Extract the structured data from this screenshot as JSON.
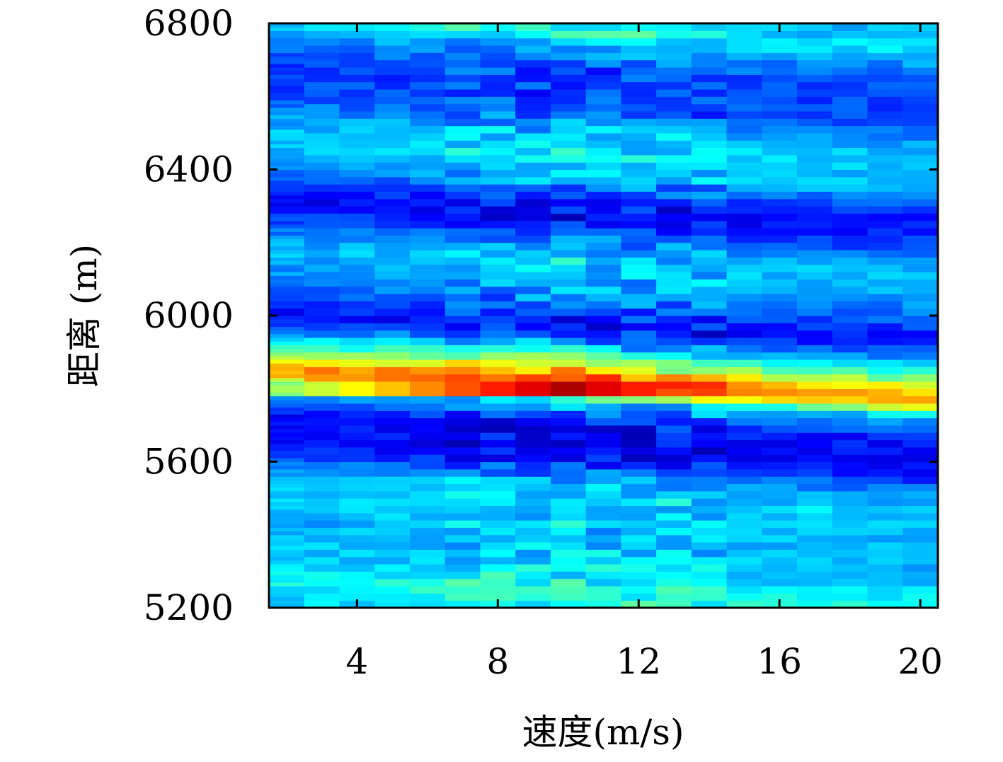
{
  "chart_data": {
    "type": "heatmap",
    "title": "",
    "xlabel": "速度(m/s)",
    "ylabel": "距离 (m)",
    "xlim": [
      1.5,
      20.5
    ],
    "ylim": [
      5200,
      6800
    ],
    "xticks": [
      "4",
      "8",
      "12",
      "16",
      "20"
    ],
    "yticks": [
      "5200",
      "5600",
      "6000",
      "6400",
      "6800"
    ],
    "grid": false,
    "legend": "none",
    "colormap": "jet",
    "x_columns": [
      2,
      3,
      4,
      5,
      6,
      7,
      8,
      9,
      10,
      11,
      12,
      13,
      14,
      15,
      16,
      17,
      18,
      19,
      20
    ],
    "range_profile_keypoints": [
      {
        "y": 5200,
        "v": 0.35
      },
      {
        "y": 5240,
        "v": 0.4
      },
      {
        "y": 5300,
        "v": 0.33
      },
      {
        "y": 5400,
        "v": 0.3
      },
      {
        "y": 5500,
        "v": 0.34
      },
      {
        "y": 5560,
        "v": 0.25
      },
      {
        "y": 5620,
        "v": 0.12
      },
      {
        "y": 5700,
        "v": 0.14
      },
      {
        "y": 5760,
        "v": 0.3
      },
      {
        "y": 5800,
        "v": 0.7
      },
      {
        "y": 5820,
        "v": 0.78
      },
      {
        "y": 5860,
        "v": 0.55
      },
      {
        "y": 5920,
        "v": 0.28
      },
      {
        "y": 5970,
        "v": 0.12
      },
      {
        "y": 6000,
        "v": 0.17
      },
      {
        "y": 6060,
        "v": 0.26
      },
      {
        "y": 6150,
        "v": 0.32
      },
      {
        "y": 6200,
        "v": 0.24
      },
      {
        "y": 6280,
        "v": 0.12
      },
      {
        "y": 6330,
        "v": 0.18
      },
      {
        "y": 6380,
        "v": 0.3
      },
      {
        "y": 6450,
        "v": 0.34
      },
      {
        "y": 6500,
        "v": 0.3
      },
      {
        "y": 6570,
        "v": 0.2
      },
      {
        "y": 6650,
        "v": 0.18
      },
      {
        "y": 6720,
        "v": 0.26
      },
      {
        "y": 6780,
        "v": 0.38
      },
      {
        "y": 6800,
        "v": 0.32
      }
    ],
    "velocity_gain": [
      0.94,
      0.96,
      0.98,
      1.0,
      1.02,
      1.08,
      1.12,
      1.14,
      1.22,
      1.12,
      1.1,
      1.06,
      1.06,
      1.02,
      0.98,
      0.97,
      0.96,
      0.94,
      0.92
    ],
    "peak": {
      "x": 10,
      "y": 5800,
      "value": 1.0
    }
  }
}
